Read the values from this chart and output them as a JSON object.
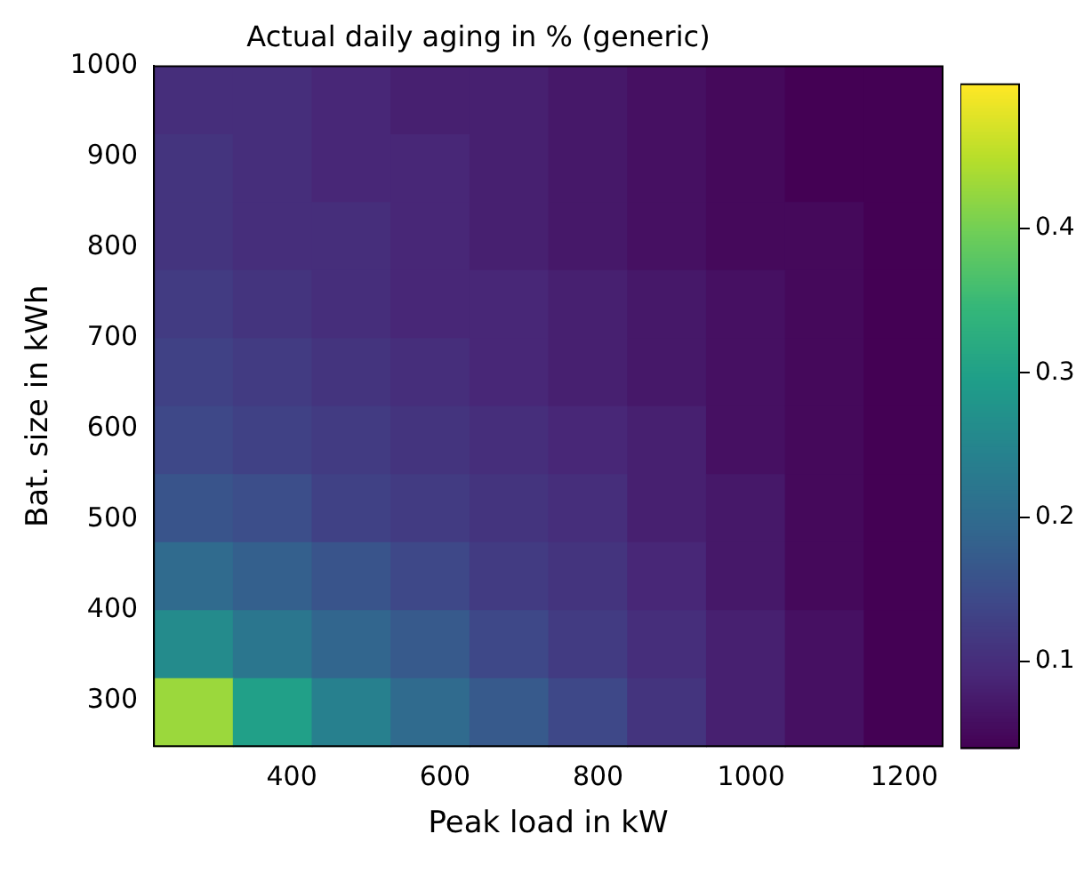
{
  "chart_data": {
    "type": "heatmap",
    "title": "Actual daily aging in % (generic)",
    "xlabel": "Peak load in kW",
    "ylabel": "Bat. size in kWh",
    "xlim": [
      220,
      1250
    ],
    "xticks": [
      400,
      600,
      800,
      1000,
      1200
    ],
    "ylim": [
      250,
      1000
    ],
    "yticks": [
      300,
      400,
      500,
      600,
      700,
      800,
      900,
      1000
    ],
    "clim": [
      0.04,
      0.5
    ],
    "cticks": [
      0.1,
      0.2,
      0.3,
      0.4
    ],
    "cells": [
      [
        0.1,
        0.1,
        0.09,
        0.08,
        0.08,
        0.07,
        0.06,
        0.05,
        0.04,
        0.04
      ],
      [
        0.11,
        0.1,
        0.09,
        0.09,
        0.08,
        0.07,
        0.06,
        0.05,
        0.04,
        0.04
      ],
      [
        0.11,
        0.1,
        0.1,
        0.09,
        0.08,
        0.07,
        0.06,
        0.05,
        0.05,
        0.04
      ],
      [
        0.12,
        0.11,
        0.1,
        0.09,
        0.09,
        0.08,
        0.07,
        0.06,
        0.05,
        0.04
      ],
      [
        0.13,
        0.12,
        0.11,
        0.1,
        0.09,
        0.08,
        0.07,
        0.06,
        0.05,
        0.04
      ],
      [
        0.14,
        0.13,
        0.12,
        0.11,
        0.1,
        0.09,
        0.08,
        0.06,
        0.05,
        0.04
      ],
      [
        0.16,
        0.15,
        0.13,
        0.12,
        0.11,
        0.1,
        0.08,
        0.07,
        0.05,
        0.04
      ],
      [
        0.2,
        0.18,
        0.16,
        0.14,
        0.12,
        0.11,
        0.09,
        0.07,
        0.05,
        0.04
      ],
      [
        0.26,
        0.22,
        0.19,
        0.17,
        0.14,
        0.12,
        0.1,
        0.08,
        0.06,
        0.04
      ],
      [
        0.43,
        0.3,
        0.24,
        0.2,
        0.17,
        0.14,
        0.11,
        0.08,
        0.06,
        0.04
      ]
    ]
  }
}
